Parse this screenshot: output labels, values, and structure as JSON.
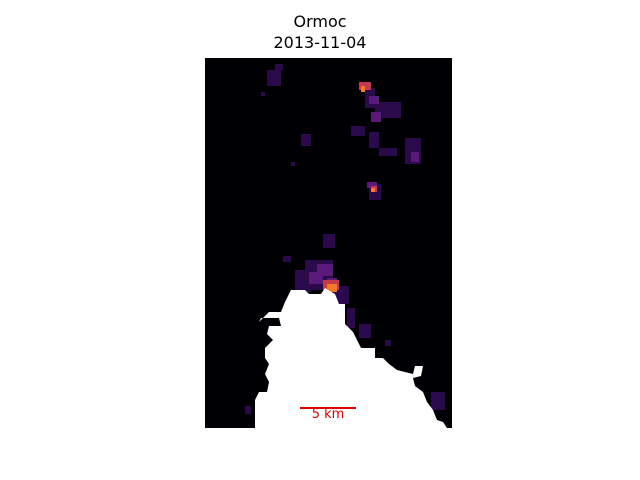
{
  "title": {
    "place": "Ormoc",
    "date": "2013-11-04"
  },
  "map": {
    "background_color": "#000004",
    "land_mask_color": "#ffffff",
    "colormap": "inferno"
  },
  "scalebar": {
    "label": "5 km",
    "color": "#e00000"
  }
}
